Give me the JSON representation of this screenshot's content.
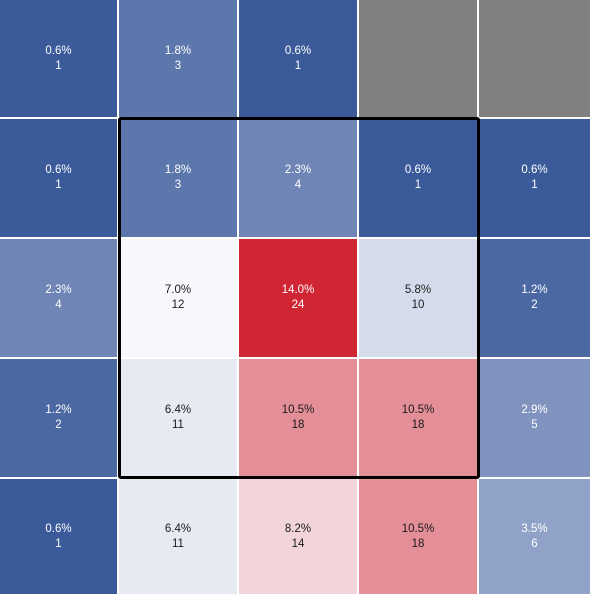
{
  "chart_data": {
    "type": "heatmap",
    "title": "",
    "xlabel": "",
    "ylabel": "",
    "rows": 5,
    "cols": 5,
    "cells": [
      [
        {
          "pct": "0.6%",
          "count": 1
        },
        {
          "pct": "1.8%",
          "count": 3
        },
        {
          "pct": "0.6%",
          "count": 1
        },
        null,
        null
      ],
      [
        {
          "pct": "0.6%",
          "count": 1
        },
        {
          "pct": "1.8%",
          "count": 3
        },
        {
          "pct": "2.3%",
          "count": 4
        },
        {
          "pct": "0.6%",
          "count": 1
        },
        {
          "pct": "0.6%",
          "count": 1
        }
      ],
      [
        {
          "pct": "2.3%",
          "count": 4
        },
        {
          "pct": "7.0%",
          "count": 12
        },
        {
          "pct": "14.0%",
          "count": 24
        },
        {
          "pct": "5.8%",
          "count": 10
        },
        {
          "pct": "1.2%",
          "count": 2
        }
      ],
      [
        {
          "pct": "1.2%",
          "count": 2
        },
        {
          "pct": "6.4%",
          "count": 11
        },
        {
          "pct": "10.5%",
          "count": 18
        },
        {
          "pct": "10.5%",
          "count": 18
        },
        {
          "pct": "2.9%",
          "count": 5
        }
      ],
      [
        {
          "pct": "0.6%",
          "count": 1
        },
        {
          "pct": "6.4%",
          "count": 11
        },
        {
          "pct": "8.2%",
          "count": 14
        },
        {
          "pct": "10.5%",
          "count": 18
        },
        {
          "pct": "3.5%",
          "count": 6
        }
      ]
    ],
    "strike_zone": {
      "row_start": 1,
      "row_end": 3,
      "col_start": 1,
      "col_end": 3
    },
    "colors": {
      "low": "#3a5a9a",
      "mid": "#f7f8fc",
      "high": "#d02533",
      "empty": "#808080",
      "zone_border": "#000000"
    }
  }
}
